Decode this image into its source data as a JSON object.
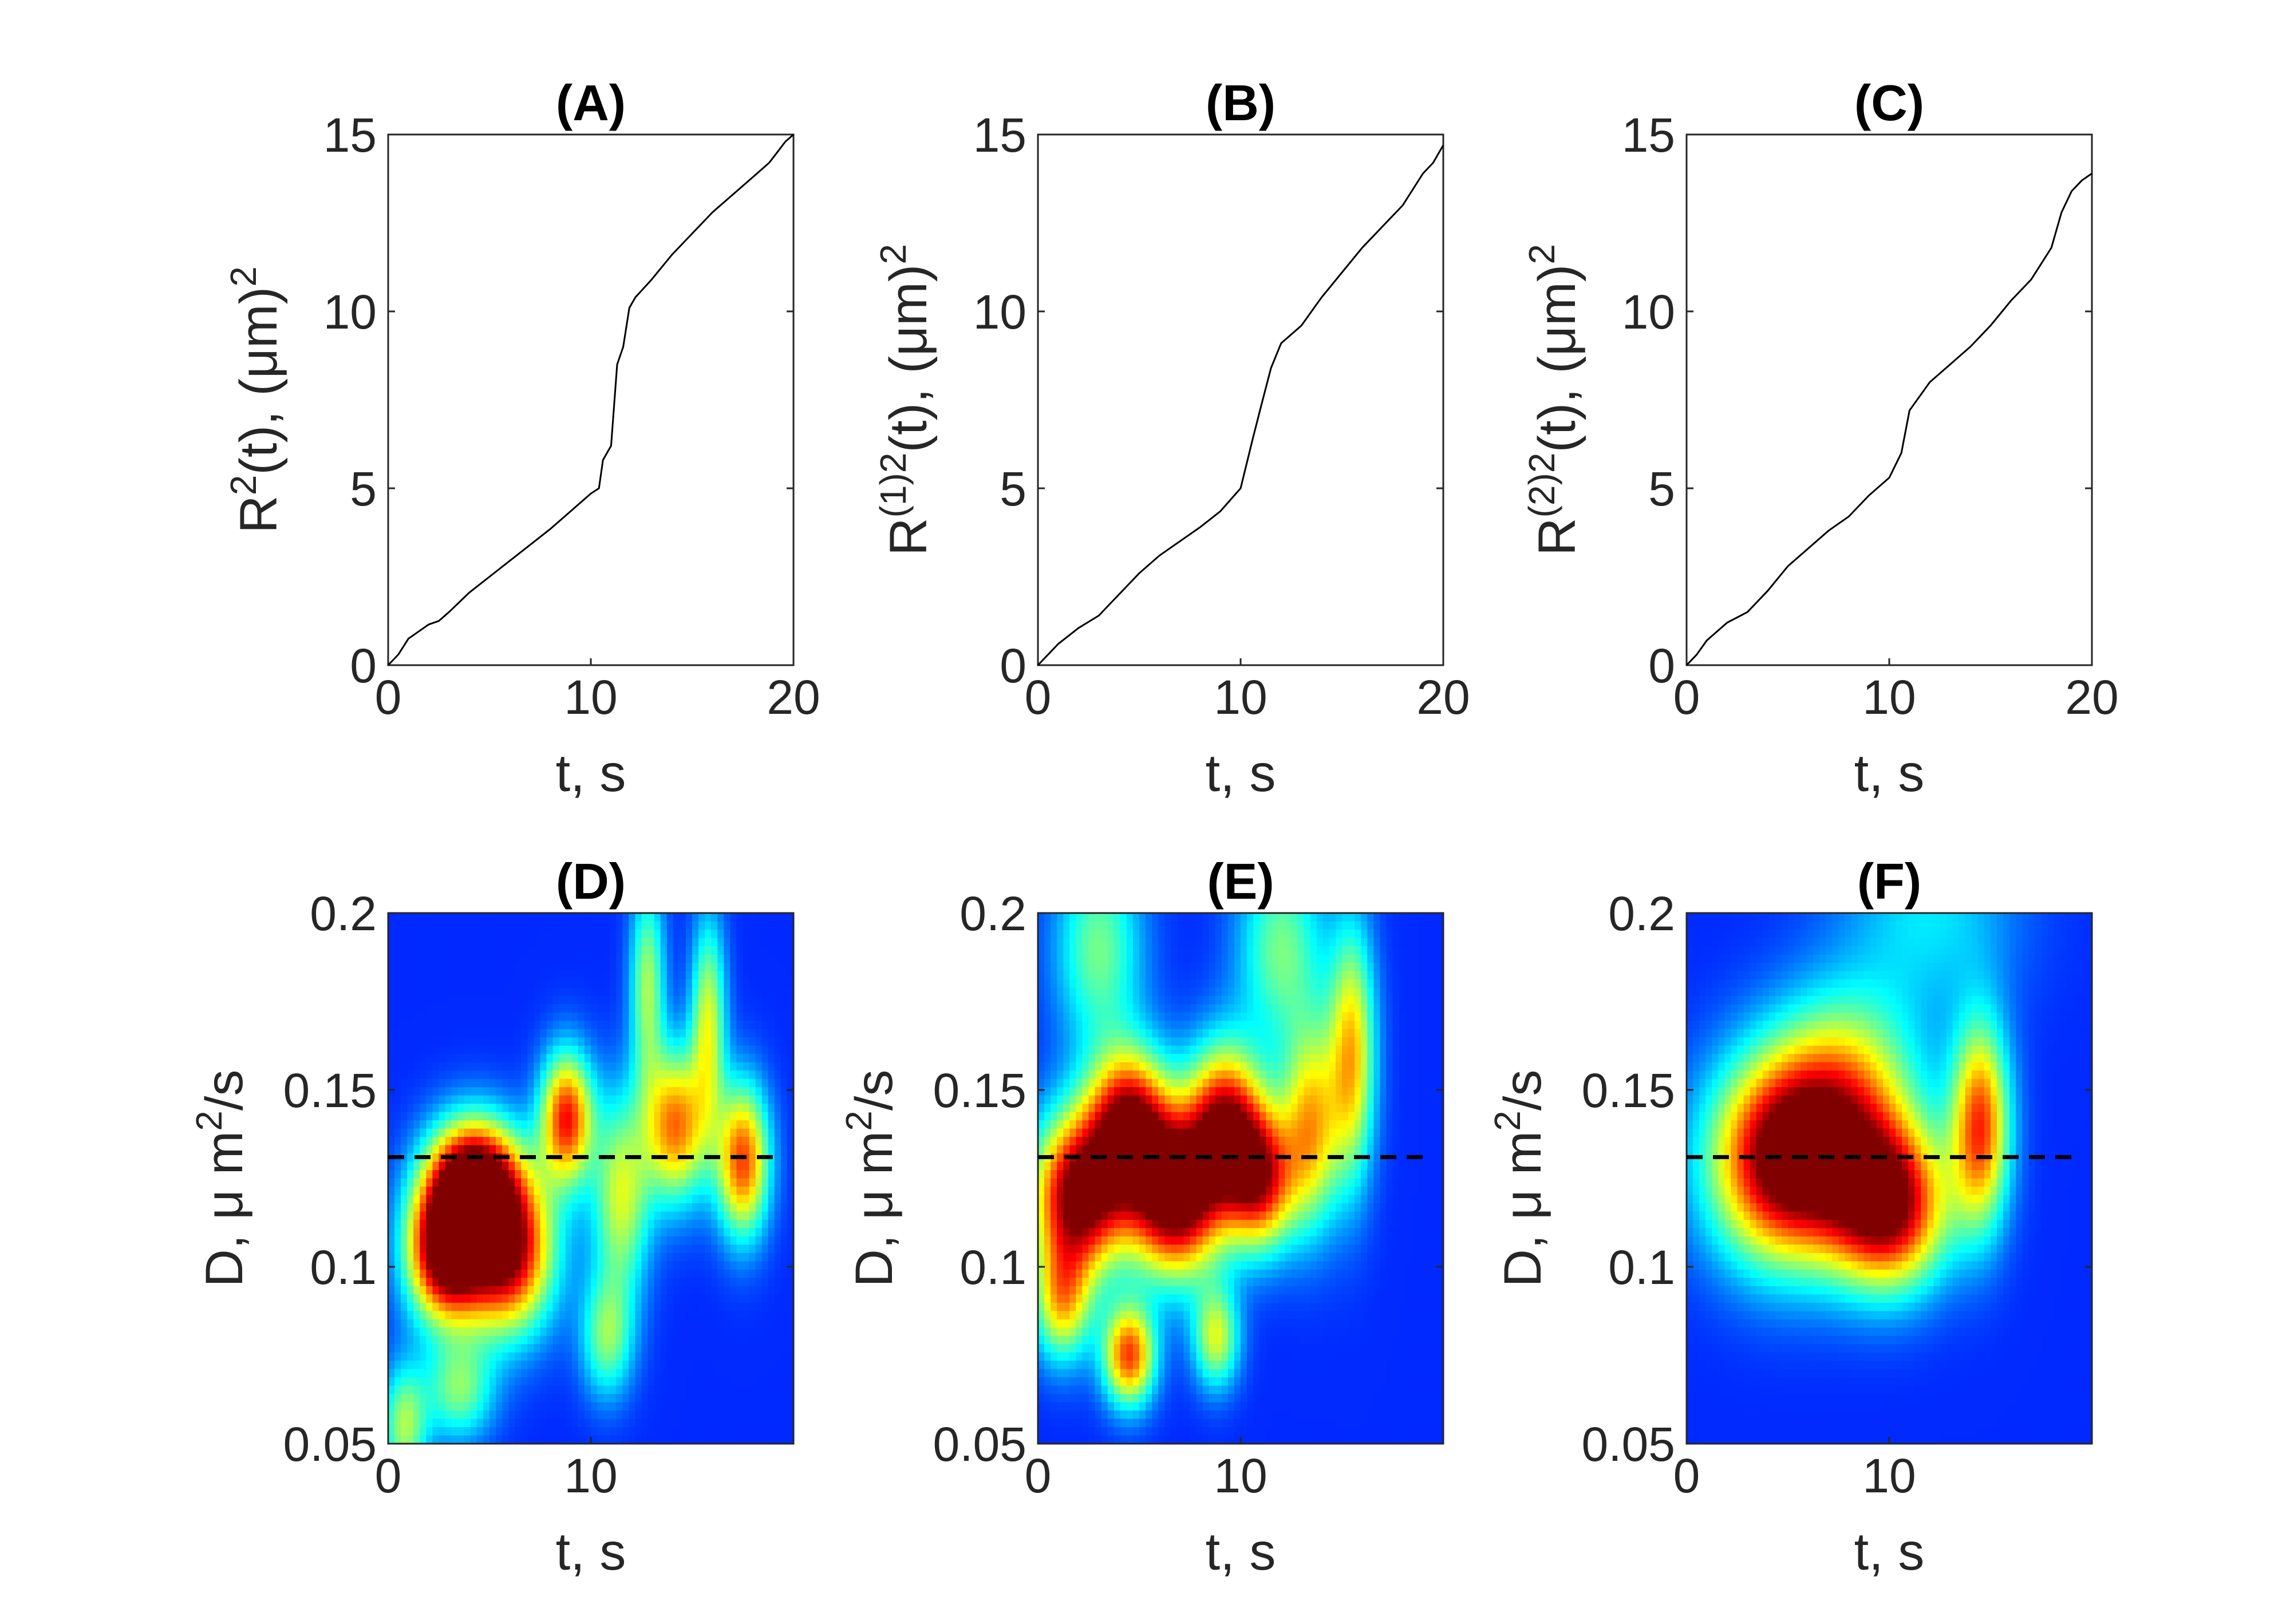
{
  "colors": {
    "line": "#000000",
    "axis": "#262626",
    "reference_line": "#000000",
    "colormap": "jet"
  },
  "chart_data": [
    {
      "panel": "A",
      "type": "line",
      "title": "(A)",
      "xlabel": "t, s",
      "ylabel_base": "R",
      "ylabel_sup": "2",
      "ylabel_rest": "(t), (μm)",
      "ylabel_sup2": "2",
      "xlim": [
        0,
        20
      ],
      "ylim": [
        0,
        15
      ],
      "xticks": [
        0,
        10,
        20
      ],
      "yticks": [
        0,
        5,
        10,
        15
      ],
      "x": [
        0,
        0.5,
        1,
        1.5,
        2,
        2.5,
        3,
        4,
        5,
        6,
        7,
        8,
        9,
        10,
        10.4,
        10.6,
        11,
        11.3,
        11.6,
        11.9,
        12.2,
        13,
        14,
        15,
        16,
        17,
        18,
        18.8,
        19.2,
        19.6,
        20
      ],
      "y": [
        0,
        0.3,
        0.75,
        0.95,
        1.15,
        1.25,
        1.5,
        2.05,
        2.5,
        2.95,
        3.4,
        3.85,
        4.35,
        4.85,
        5.0,
        5.8,
        6.2,
        8.5,
        9.0,
        10.1,
        10.4,
        10.9,
        11.6,
        12.2,
        12.8,
        13.3,
        13.8,
        14.2,
        14.5,
        14.8,
        15.0
      ],
      "grid": false
    },
    {
      "panel": "B",
      "type": "line",
      "title": "(B)",
      "xlabel": "t, s",
      "ylabel_base": "R",
      "ylabel_sup": "(1)2",
      "ylabel_rest": "(t), (μm)",
      "ylabel_sup2": "2",
      "xlim": [
        0,
        20
      ],
      "ylim": [
        0,
        15
      ],
      "xticks": [
        0,
        10,
        20
      ],
      "yticks": [
        0,
        5,
        10,
        15
      ],
      "x": [
        0,
        0.5,
        1,
        2,
        3,
        4,
        5,
        6,
        7,
        8,
        9,
        10,
        10.6,
        11,
        11.5,
        12,
        13,
        14,
        15,
        16,
        17,
        18,
        19,
        19.5,
        20
      ],
      "y": [
        0,
        0.3,
        0.6,
        1.05,
        1.4,
        2.0,
        2.6,
        3.1,
        3.5,
        3.9,
        4.35,
        5.0,
        6.4,
        7.3,
        8.4,
        9.1,
        9.6,
        10.4,
        11.1,
        11.8,
        12.4,
        13.0,
        13.9,
        14.2,
        14.7
      ],
      "grid": false
    },
    {
      "panel": "C",
      "type": "line",
      "title": "(C)",
      "xlabel": "t, s",
      "ylabel_base": "R",
      "ylabel_sup": "(2)2",
      "ylabel_rest": "(t), (μm)",
      "ylabel_sup2": "2",
      "xlim": [
        0,
        20
      ],
      "ylim": [
        0,
        15
      ],
      "xticks": [
        0,
        10,
        20
      ],
      "yticks": [
        0,
        5,
        10,
        15
      ],
      "x": [
        0,
        0.5,
        1,
        2,
        3,
        4,
        5,
        6,
        7,
        8,
        9,
        10,
        10.6,
        11,
        12,
        13,
        14,
        15,
        16,
        17,
        18,
        18.5,
        19,
        19.5,
        20
      ],
      "y": [
        0,
        0.3,
        0.7,
        1.2,
        1.5,
        2.1,
        2.8,
        3.3,
        3.8,
        4.2,
        4.8,
        5.3,
        6.0,
        7.2,
        8.0,
        8.5,
        9.0,
        9.6,
        10.3,
        10.9,
        11.8,
        12.8,
        13.4,
        13.7,
        13.9
      ],
      "grid": false
    },
    {
      "panel": "D",
      "type": "heatmap",
      "title": "(D)",
      "xlabel": "t, s",
      "ylabel": "D, μ m",
      "ylabel_sup": "2",
      "ylabel_rest": "/s",
      "xlim": [
        0,
        20
      ],
      "ylim": [
        0.05,
        0.2
      ],
      "xticks": [
        0,
        10
      ],
      "yticks": [
        0.05,
        0.1,
        0.15,
        0.2
      ],
      "ytick_labels": [
        "0.05",
        "0.1",
        "0.15",
        "0.2"
      ],
      "colormap": "jet",
      "reference_line_y": 0.131,
      "reference_line_style": "dashed",
      "peaks": [
        {
          "t": 2.8,
          "D": 0.105,
          "width": 1.3,
          "height": 0.014,
          "amp": 1.0
        },
        {
          "t": 5.8,
          "D": 0.105,
          "width": 1.6,
          "height": 0.016,
          "amp": 0.95
        },
        {
          "t": 4.2,
          "D": 0.125,
          "width": 1.5,
          "height": 0.012,
          "amp": 0.9
        },
        {
          "t": 8.8,
          "D": 0.142,
          "width": 0.9,
          "height": 0.013,
          "amp": 0.75
        },
        {
          "t": 14.2,
          "D": 0.14,
          "width": 1.1,
          "height": 0.015,
          "amp": 0.65
        },
        {
          "t": 17.5,
          "D": 0.13,
          "width": 0.9,
          "height": 0.015,
          "amp": 0.7
        },
        {
          "t": 11.5,
          "D": 0.12,
          "width": 1.0,
          "height": 0.02,
          "amp": 0.45
        },
        {
          "t": 15.8,
          "D": 0.17,
          "width": 0.6,
          "height": 0.02,
          "amp": 0.45
        },
        {
          "t": 12.8,
          "D": 0.18,
          "width": 0.6,
          "height": 0.02,
          "amp": 0.4
        },
        {
          "t": 10.8,
          "D": 0.08,
          "width": 0.9,
          "height": 0.012,
          "amp": 0.35
        },
        {
          "t": 3.5,
          "D": 0.065,
          "width": 1.2,
          "height": 0.01,
          "amp": 0.35
        },
        {
          "t": 0.8,
          "D": 0.055,
          "width": 0.8,
          "height": 0.012,
          "amp": 0.4
        }
      ]
    },
    {
      "panel": "E",
      "type": "heatmap",
      "title": "(E)",
      "xlabel": "t, s",
      "ylabel": "D, μ m",
      "ylabel_sup": "2",
      "ylabel_rest": "/s",
      "xlim": [
        0,
        20
      ],
      "ylim": [
        0.05,
        0.2
      ],
      "xticks": [
        0,
        10
      ],
      "yticks": [
        0.05,
        0.1,
        0.15,
        0.2
      ],
      "ytick_labels": [
        "0.05",
        "0.1",
        "0.15",
        "0.2"
      ],
      "colormap": "jet",
      "reference_line_y": 0.131,
      "reference_line_style": "dashed",
      "peaks": [
        {
          "t": 2.0,
          "D": 0.12,
          "width": 1.6,
          "height": 0.016,
          "amp": 0.95
        },
        {
          "t": 6.8,
          "D": 0.12,
          "width": 1.6,
          "height": 0.016,
          "amp": 1.0
        },
        {
          "t": 4.5,
          "D": 0.14,
          "width": 1.4,
          "height": 0.015,
          "amp": 0.85
        },
        {
          "t": 9.2,
          "D": 0.14,
          "width": 1.3,
          "height": 0.016,
          "amp": 0.8
        },
        {
          "t": 11.0,
          "D": 0.125,
          "width": 1.2,
          "height": 0.014,
          "amp": 0.75
        },
        {
          "t": 13.5,
          "D": 0.14,
          "width": 1.0,
          "height": 0.02,
          "amp": 0.55
        },
        {
          "t": 15.5,
          "D": 0.16,
          "width": 0.8,
          "height": 0.025,
          "amp": 0.55
        },
        {
          "t": 4.5,
          "D": 0.075,
          "width": 0.9,
          "height": 0.01,
          "amp": 0.7
        },
        {
          "t": 8.8,
          "D": 0.08,
          "width": 0.8,
          "height": 0.01,
          "amp": 0.45
        },
        {
          "t": 1.2,
          "D": 0.09,
          "width": 1.0,
          "height": 0.012,
          "amp": 0.5
        },
        {
          "t": 3.0,
          "D": 0.19,
          "width": 1.5,
          "height": 0.02,
          "amp": 0.35
        },
        {
          "t": 12.0,
          "D": 0.19,
          "width": 1.5,
          "height": 0.02,
          "amp": 0.35
        }
      ]
    },
    {
      "panel": "F",
      "type": "heatmap",
      "title": "(F)",
      "xlabel": "t, s",
      "ylabel": "D, μ m",
      "ylabel_sup": "2",
      "ylabel_rest": "/s",
      "xlim": [
        0,
        20
      ],
      "ylim": [
        0.05,
        0.2
      ],
      "xticks": [
        0,
        10
      ],
      "yticks": [
        0.05,
        0.1,
        0.15,
        0.2
      ],
      "ytick_labels": [
        "0.05",
        "0.1",
        "0.15",
        "0.2"
      ],
      "colormap": "jet",
      "reference_line_y": 0.131,
      "reference_line_style": "dashed",
      "peaks": [
        {
          "t": 5.0,
          "D": 0.13,
          "width": 2.6,
          "height": 0.02,
          "amp": 1.0
        },
        {
          "t": 10.0,
          "D": 0.117,
          "width": 2.0,
          "height": 0.016,
          "amp": 0.88
        },
        {
          "t": 14.5,
          "D": 0.14,
          "width": 1.0,
          "height": 0.02,
          "amp": 0.7
        },
        {
          "t": 8.0,
          "D": 0.15,
          "width": 2.5,
          "height": 0.02,
          "amp": 0.45
        },
        {
          "t": 12.0,
          "D": 0.2,
          "width": 3.0,
          "height": 0.02,
          "amp": 0.2
        }
      ]
    }
  ]
}
